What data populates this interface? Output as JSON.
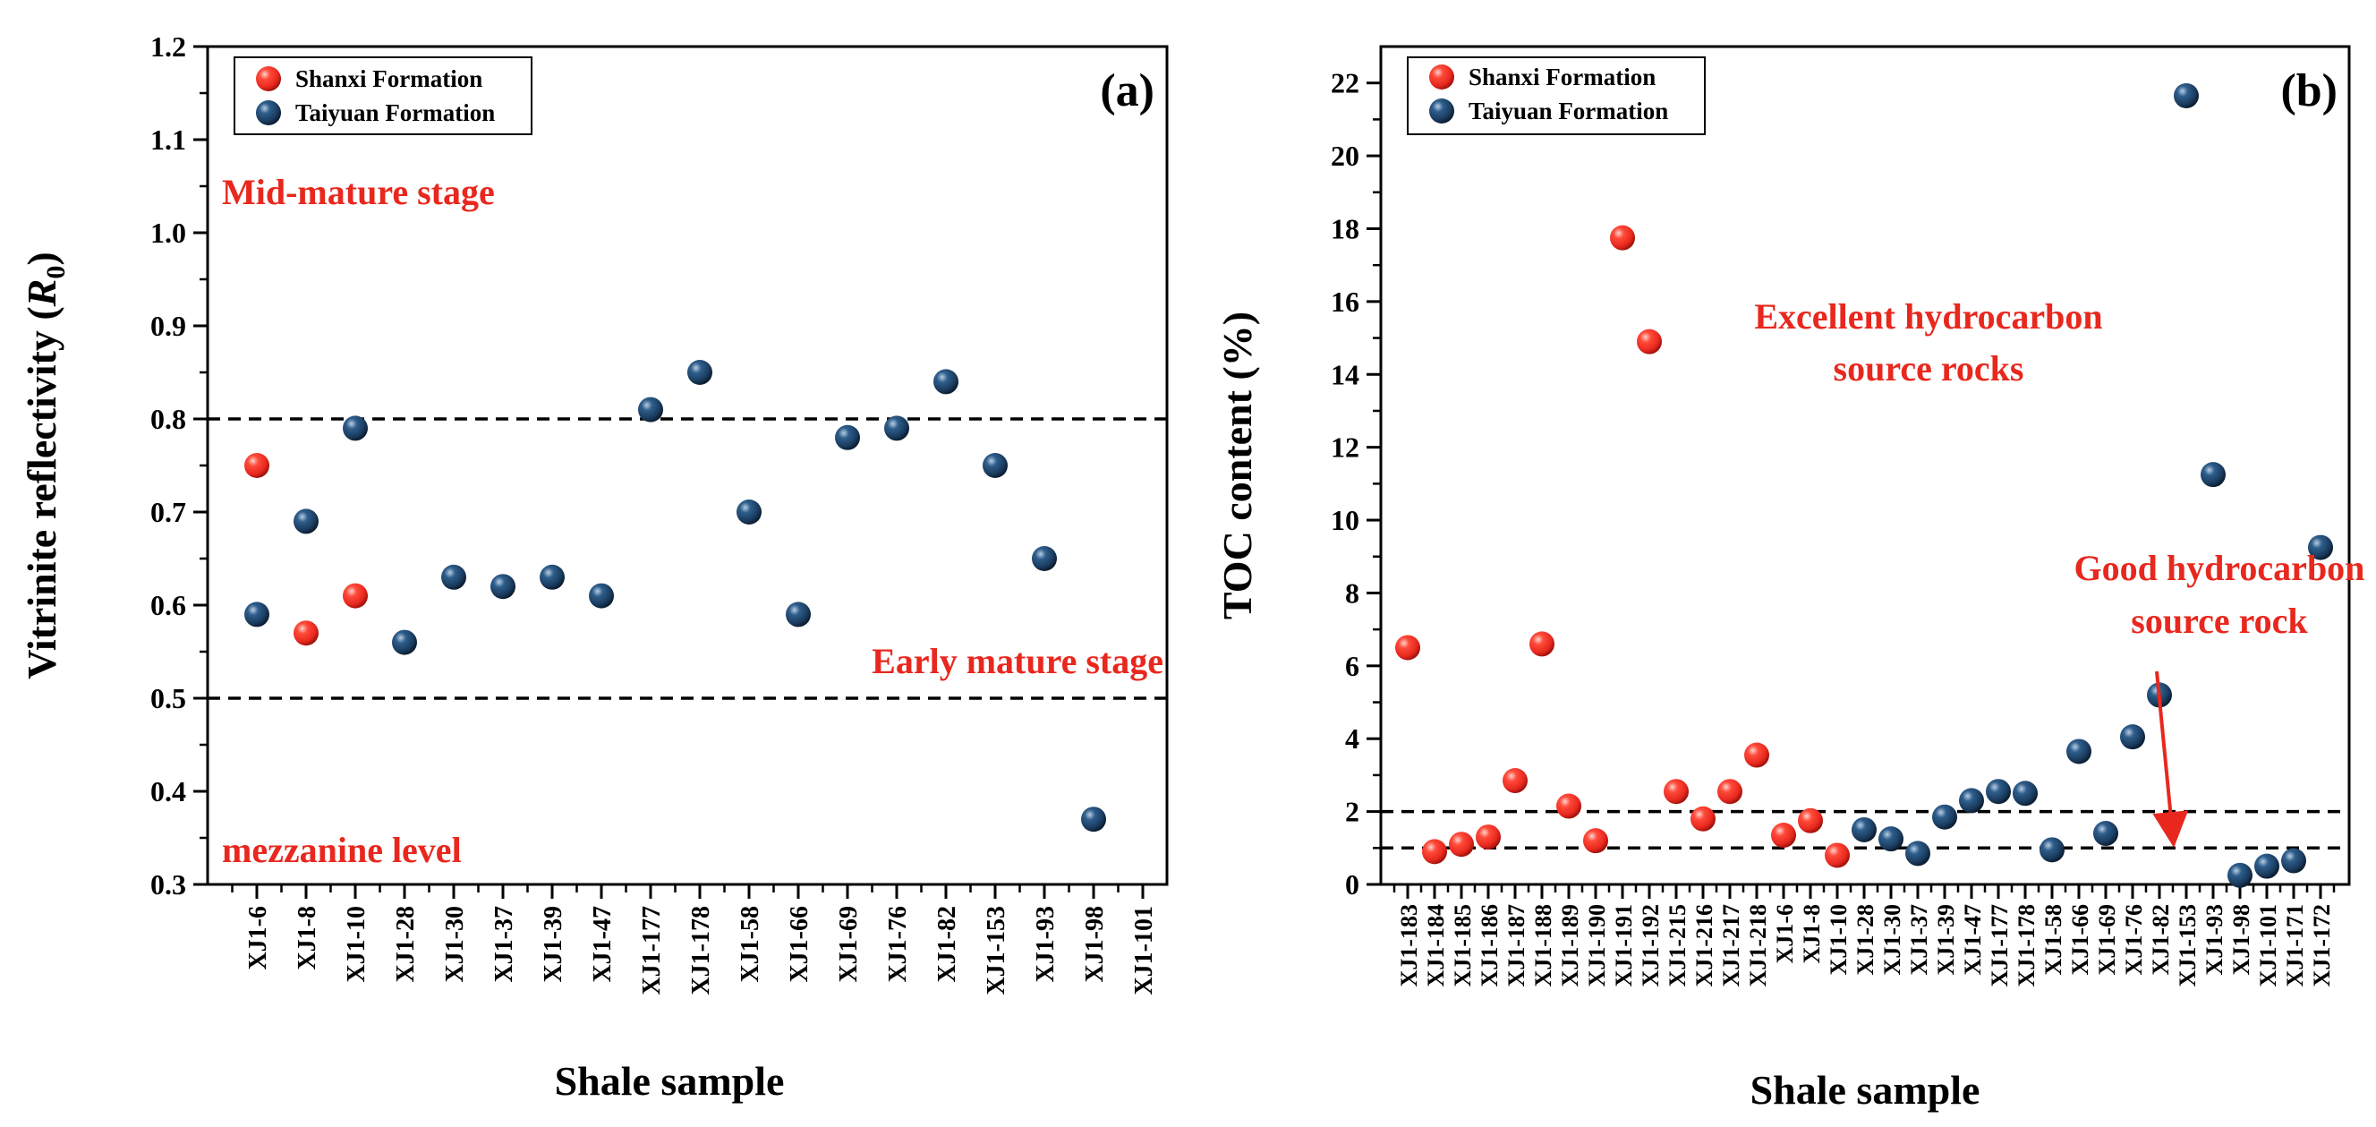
{
  "chart_data": [
    {
      "type": "scatter",
      "panel_label": "(a)",
      "xlabel": "Shale sample",
      "ylabel_text": "Vitrinite reflectivity (",
      "ylabel_symbol": "R",
      "ylabel_subscript": "0",
      "ylabel_close": ")",
      "ylim": [
        0.3,
        1.2
      ],
      "yticks": [
        "0.3",
        "0.4",
        "0.5",
        "0.6",
        "0.7",
        "0.8",
        "0.9",
        "1.0",
        "1.1",
        "1.2"
      ],
      "categories": [
        "XJ1-6",
        "XJ1-8",
        "XJ1-10",
        "XJ1-28",
        "XJ1-30",
        "XJ1-37",
        "XJ1-39",
        "XJ1-47",
        "XJ1-177",
        "XJ1-178",
        "XJ1-58",
        "XJ1-66",
        "XJ1-69",
        "XJ1-76",
        "XJ1-82",
        "XJ1-153",
        "XJ1-93",
        "XJ1-98",
        "XJ1-101"
      ],
      "legend": [
        "Shanxi Formation",
        "Taiyuan Formation"
      ],
      "legend_position": "top-left",
      "series": [
        {
          "name": "Shanxi Formation",
          "color": "#e8281e",
          "points": [
            [
              "XJ1-6",
              0.75
            ],
            [
              "XJ1-8",
              0.57
            ],
            [
              "XJ1-10",
              0.61
            ]
          ]
        },
        {
          "name": "Taiyuan Formation",
          "color": "#1a3b5e",
          "points": [
            [
              "XJ1-6",
              0.59
            ],
            [
              "XJ1-8",
              0.69
            ],
            [
              "XJ1-10",
              0.79
            ],
            [
              "XJ1-28",
              0.56
            ],
            [
              "XJ1-30",
              0.63
            ],
            [
              "XJ1-37",
              0.62
            ],
            [
              "XJ1-39",
              0.63
            ],
            [
              "XJ1-47",
              0.61
            ],
            [
              "XJ1-177",
              0.81
            ],
            [
              "XJ1-178",
              0.85
            ],
            [
              "XJ1-58",
              0.7
            ],
            [
              "XJ1-66",
              0.59
            ],
            [
              "XJ1-69",
              0.78
            ],
            [
              "XJ1-76",
              0.79
            ],
            [
              "XJ1-82",
              0.84
            ],
            [
              "XJ1-153",
              0.75
            ],
            [
              "XJ1-93",
              0.65
            ],
            [
              "XJ1-98",
              0.37
            ]
          ]
        }
      ],
      "reference_lines": [
        0.8,
        0.5
      ],
      "annotations": [
        "Mid-mature stage",
        "Early mature stage",
        "mezzanine level"
      ],
      "annotation_color": "#e8281e"
    },
    {
      "type": "scatter",
      "panel_label": "(b)",
      "xlabel": "Shale sample",
      "ylabel": "TOC content (%)",
      "ylim": [
        0,
        23
      ],
      "yticks": [
        "0",
        "2",
        "4",
        "6",
        "8",
        "10",
        "12",
        "14",
        "16",
        "18",
        "20",
        "22"
      ],
      "categories": [
        "XJ1-183",
        "XJ1-184",
        "XJ1-185",
        "XJ1-186",
        "XJ1-187",
        "XJ1-188",
        "XJ1-189",
        "XJ1-190",
        "XJ1-191",
        "XJ1-192",
        "XJ1-215",
        "XJ1-216",
        "XJ1-217",
        "XJ1-218",
        "XJ1-6",
        "XJ1-8",
        "XJ1-10",
        "XJ1-28",
        "XJ1-30",
        "XJ1-37",
        "XJ1-39",
        "XJ1-47",
        "XJ1-177",
        "XJ1-178",
        "XJ1-58",
        "XJ1-66",
        "XJ1-69",
        "XJ1-76",
        "XJ1-82",
        "XJ1-153",
        "XJ1-93",
        "XJ1-98",
        "XJ1-101",
        "XJ1-171",
        "XJ1-172"
      ],
      "legend": [
        "Shanxi Formation",
        "Taiyuan Formation"
      ],
      "legend_position": "top-left",
      "series": [
        {
          "name": "Shanxi Formation",
          "color": "#e8281e",
          "points": [
            [
              "XJ1-183",
              6.5
            ],
            [
              "XJ1-184",
              0.9
            ],
            [
              "XJ1-185",
              1.1
            ],
            [
              "XJ1-186",
              1.3
            ],
            [
              "XJ1-187",
              2.85
            ],
            [
              "XJ1-188",
              6.6
            ],
            [
              "XJ1-189",
              2.15
            ],
            [
              "XJ1-190",
              1.2
            ],
            [
              "XJ1-191",
              17.75
            ],
            [
              "XJ1-192",
              14.9
            ],
            [
              "XJ1-215",
              2.55
            ],
            [
              "XJ1-216",
              1.8
            ],
            [
              "XJ1-217",
              2.55
            ],
            [
              "XJ1-218",
              3.55
            ],
            [
              "XJ1-6",
              1.35
            ],
            [
              "XJ1-8",
              1.75
            ],
            [
              "XJ1-10",
              0.8
            ]
          ]
        },
        {
          "name": "Taiyuan Formation",
          "color": "#1a3b5e",
          "points": [
            [
              "XJ1-28",
              1.5
            ],
            [
              "XJ1-30",
              1.25
            ],
            [
              "XJ1-37",
              0.85
            ],
            [
              "XJ1-39",
              1.85
            ],
            [
              "XJ1-47",
              2.3
            ],
            [
              "XJ1-177",
              2.55
            ],
            [
              "XJ1-178",
              2.5
            ],
            [
              "XJ1-58",
              0.95
            ],
            [
              "XJ1-66",
              3.65
            ],
            [
              "XJ1-69",
              1.4
            ],
            [
              "XJ1-76",
              4.05
            ],
            [
              "XJ1-82",
              5.2
            ],
            [
              "XJ1-153",
              21.65
            ],
            [
              "XJ1-93",
              11.25
            ],
            [
              "XJ1-98",
              0.25
            ],
            [
              "XJ1-101",
              0.5
            ],
            [
              "XJ1-171",
              0.65
            ],
            [
              "XJ1-172",
              9.25
            ]
          ]
        }
      ],
      "reference_lines": [
        2,
        1
      ],
      "annotations": [
        "Excellent hydrocarbon",
        "source rocks",
        "Good hydrocarbon",
        "source rock"
      ],
      "annotation_color": "#e8281e",
      "arrow_color": "#e8281e"
    }
  ]
}
